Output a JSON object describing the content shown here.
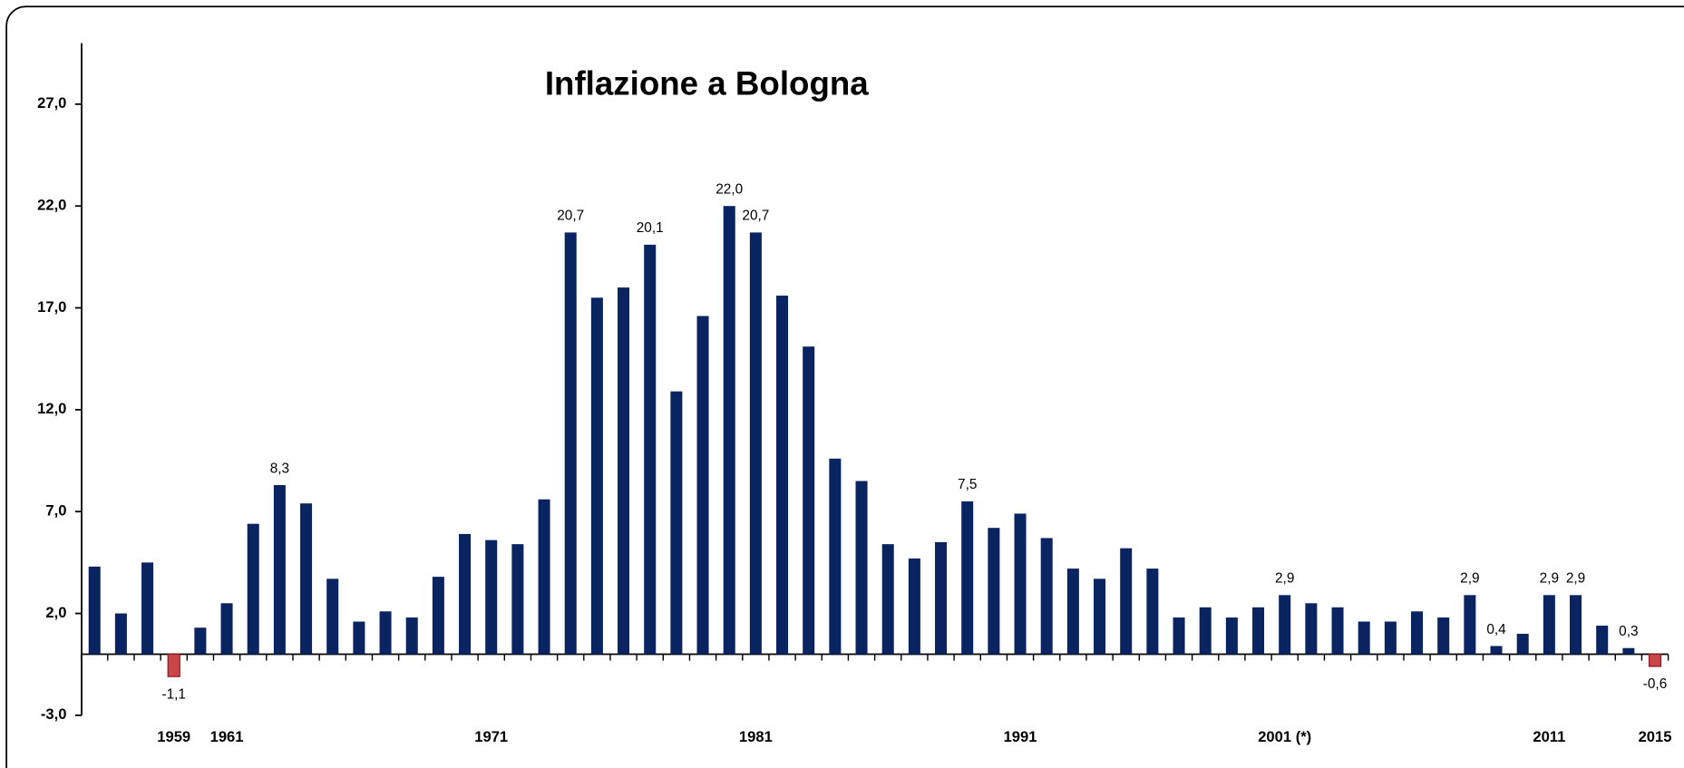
{
  "chart_data": {
    "type": "bar",
    "title": "Inflazione a Bologna",
    "categories": [
      null,
      null,
      null,
      "1959",
      null,
      "1961",
      null,
      null,
      null,
      null,
      null,
      null,
      null,
      null,
      null,
      "1971",
      null,
      null,
      null,
      null,
      null,
      null,
      null,
      null,
      null,
      "1981",
      null,
      null,
      null,
      null,
      null,
      null,
      null,
      null,
      null,
      "1991",
      null,
      null,
      null,
      null,
      null,
      null,
      null,
      null,
      null,
      "2001 (*)",
      null,
      null,
      null,
      null,
      null,
      null,
      null,
      null,
      null,
      "2011",
      null,
      null,
      null,
      "2015"
    ],
    "values": [
      4.3,
      2.0,
      4.5,
      -1.1,
      1.3,
      2.5,
      6.4,
      8.3,
      7.4,
      3.7,
      1.6,
      2.1,
      1.8,
      3.8,
      5.9,
      5.6,
      5.4,
      7.6,
      20.7,
      17.5,
      18.0,
      20.1,
      12.9,
      16.6,
      22.0,
      20.7,
      17.6,
      15.1,
      9.6,
      8.5,
      5.4,
      4.7,
      5.5,
      7.5,
      6.2,
      6.9,
      5.7,
      4.2,
      3.7,
      5.2,
      4.2,
      1.8,
      2.3,
      1.8,
      2.3,
      2.9,
      2.5,
      2.3,
      1.6,
      1.6,
      2.1,
      1.8,
      2.9,
      0.4,
      1.0,
      2.9,
      2.9,
      1.4,
      0.3,
      -0.6
    ],
    "value_labels": [
      null,
      null,
      null,
      "-1,1",
      null,
      null,
      null,
      "8,3",
      null,
      null,
      null,
      null,
      null,
      null,
      null,
      null,
      null,
      null,
      "20,7",
      null,
      null,
      "20,1",
      null,
      null,
      "22,0",
      "20,7",
      null,
      null,
      null,
      null,
      null,
      null,
      null,
      "7,5",
      null,
      null,
      null,
      null,
      null,
      null,
      null,
      null,
      null,
      null,
      null,
      "2,9",
      null,
      null,
      null,
      null,
      null,
      null,
      "2,9",
      "0,4",
      null,
      "2,9",
      "2,9",
      null,
      "0,3",
      "-0,6"
    ],
    "color": "#0a2461",
    "negative_color": "#c9454a",
    "ylim": [
      -3,
      30
    ],
    "yticks": [
      {
        "value": -3,
        "label": "-3,0"
      },
      {
        "value": 2,
        "label": "2,0"
      },
      {
        "value": 7,
        "label": "7,0"
      },
      {
        "value": 12,
        "label": "12,0"
      },
      {
        "value": 17,
        "label": "17,0"
      },
      {
        "value": 22,
        "label": "22,0"
      },
      {
        "value": 27,
        "label": "27,0"
      }
    ],
    "grid": false
  }
}
